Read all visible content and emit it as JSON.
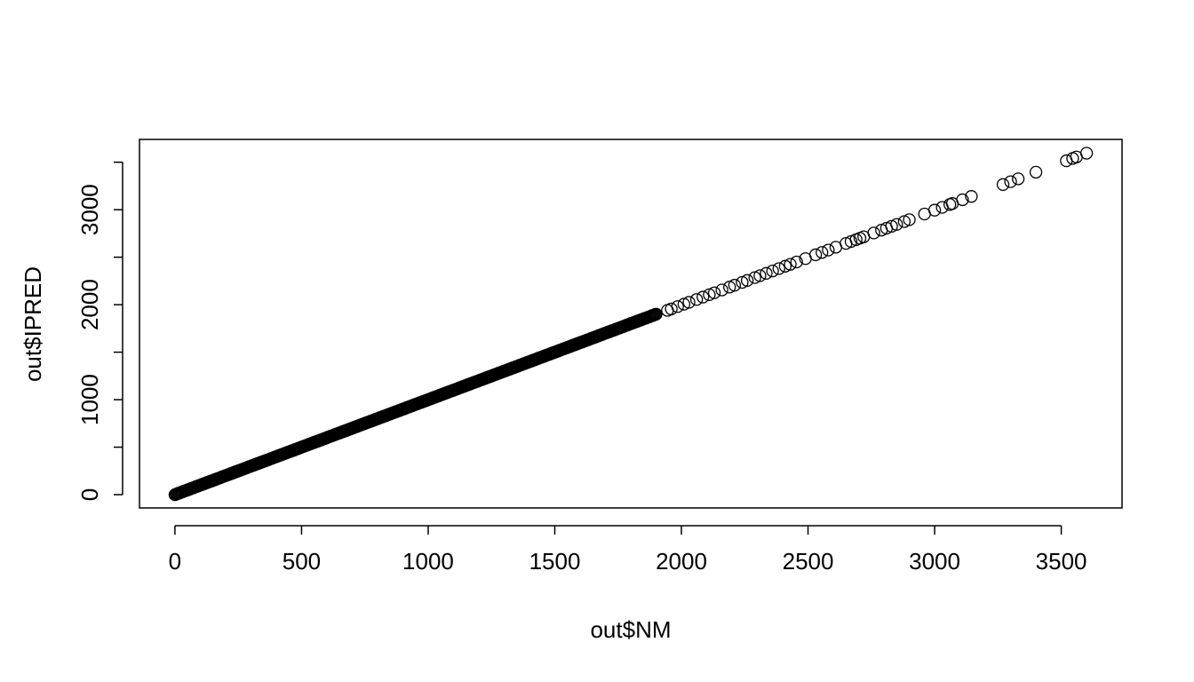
{
  "chart_data": {
    "type": "scatter",
    "title": "",
    "xlabel": "out$NM",
    "ylabel": "out$IPRED",
    "xlim": [
      -140,
      3740
    ],
    "ylim": [
      -140,
      3740
    ],
    "x_ticks": [
      0,
      500,
      1000,
      1500,
      2000,
      2500,
      3000,
      3500
    ],
    "x_tick_labels": [
      "0",
      "500",
      "1000",
      "1500",
      "2000",
      "2500",
      "3000",
      "3500"
    ],
    "y_ticks": [
      0,
      500,
      1000,
      1500,
      2000,
      2500,
      3000,
      3500
    ],
    "y_tick_labels": [
      "0",
      "",
      "1000",
      "",
      "2000",
      "",
      "3000",
      ""
    ],
    "grid": false,
    "legend": "none",
    "marker": "open-circle",
    "color": "#000000",
    "dense_range": [
      0,
      1900
    ],
    "relationship": "y = x",
    "sparse_points": [
      [
        1945,
        1940
      ],
      [
        1960,
        1955
      ],
      [
        1985,
        1980
      ],
      [
        2010,
        2005
      ],
      [
        2030,
        2025
      ],
      [
        2060,
        2055
      ],
      [
        2085,
        2080
      ],
      [
        2110,
        2105
      ],
      [
        2130,
        2125
      ],
      [
        2160,
        2155
      ],
      [
        2190,
        2185
      ],
      [
        2210,
        2205
      ],
      [
        2240,
        2235
      ],
      [
        2260,
        2255
      ],
      [
        2290,
        2285
      ],
      [
        2310,
        2305
      ],
      [
        2335,
        2330
      ],
      [
        2360,
        2355
      ],
      [
        2385,
        2380
      ],
      [
        2410,
        2405
      ],
      [
        2430,
        2425
      ],
      [
        2455,
        2450
      ],
      [
        2490,
        2485
      ],
      [
        2530,
        2525
      ],
      [
        2555,
        2550
      ],
      [
        2580,
        2575
      ],
      [
        2610,
        2605
      ],
      [
        2650,
        2645
      ],
      [
        2670,
        2665
      ],
      [
        2690,
        2685
      ],
      [
        2705,
        2700
      ],
      [
        2720,
        2715
      ],
      [
        2760,
        2755
      ],
      [
        2790,
        2785
      ],
      [
        2810,
        2805
      ],
      [
        2830,
        2825
      ],
      [
        2850,
        2845
      ],
      [
        2880,
        2875
      ],
      [
        2900,
        2895
      ],
      [
        2960,
        2955
      ],
      [
        3000,
        2995
      ],
      [
        3030,
        3025
      ],
      [
        3060,
        3055
      ],
      [
        3070,
        3065
      ],
      [
        3110,
        3105
      ],
      [
        3145,
        3140
      ],
      [
        3270,
        3265
      ],
      [
        3300,
        3295
      ],
      [
        3330,
        3325
      ],
      [
        3400,
        3395
      ],
      [
        3520,
        3515
      ],
      [
        3545,
        3540
      ],
      [
        3560,
        3555
      ],
      [
        3600,
        3595
      ]
    ]
  }
}
